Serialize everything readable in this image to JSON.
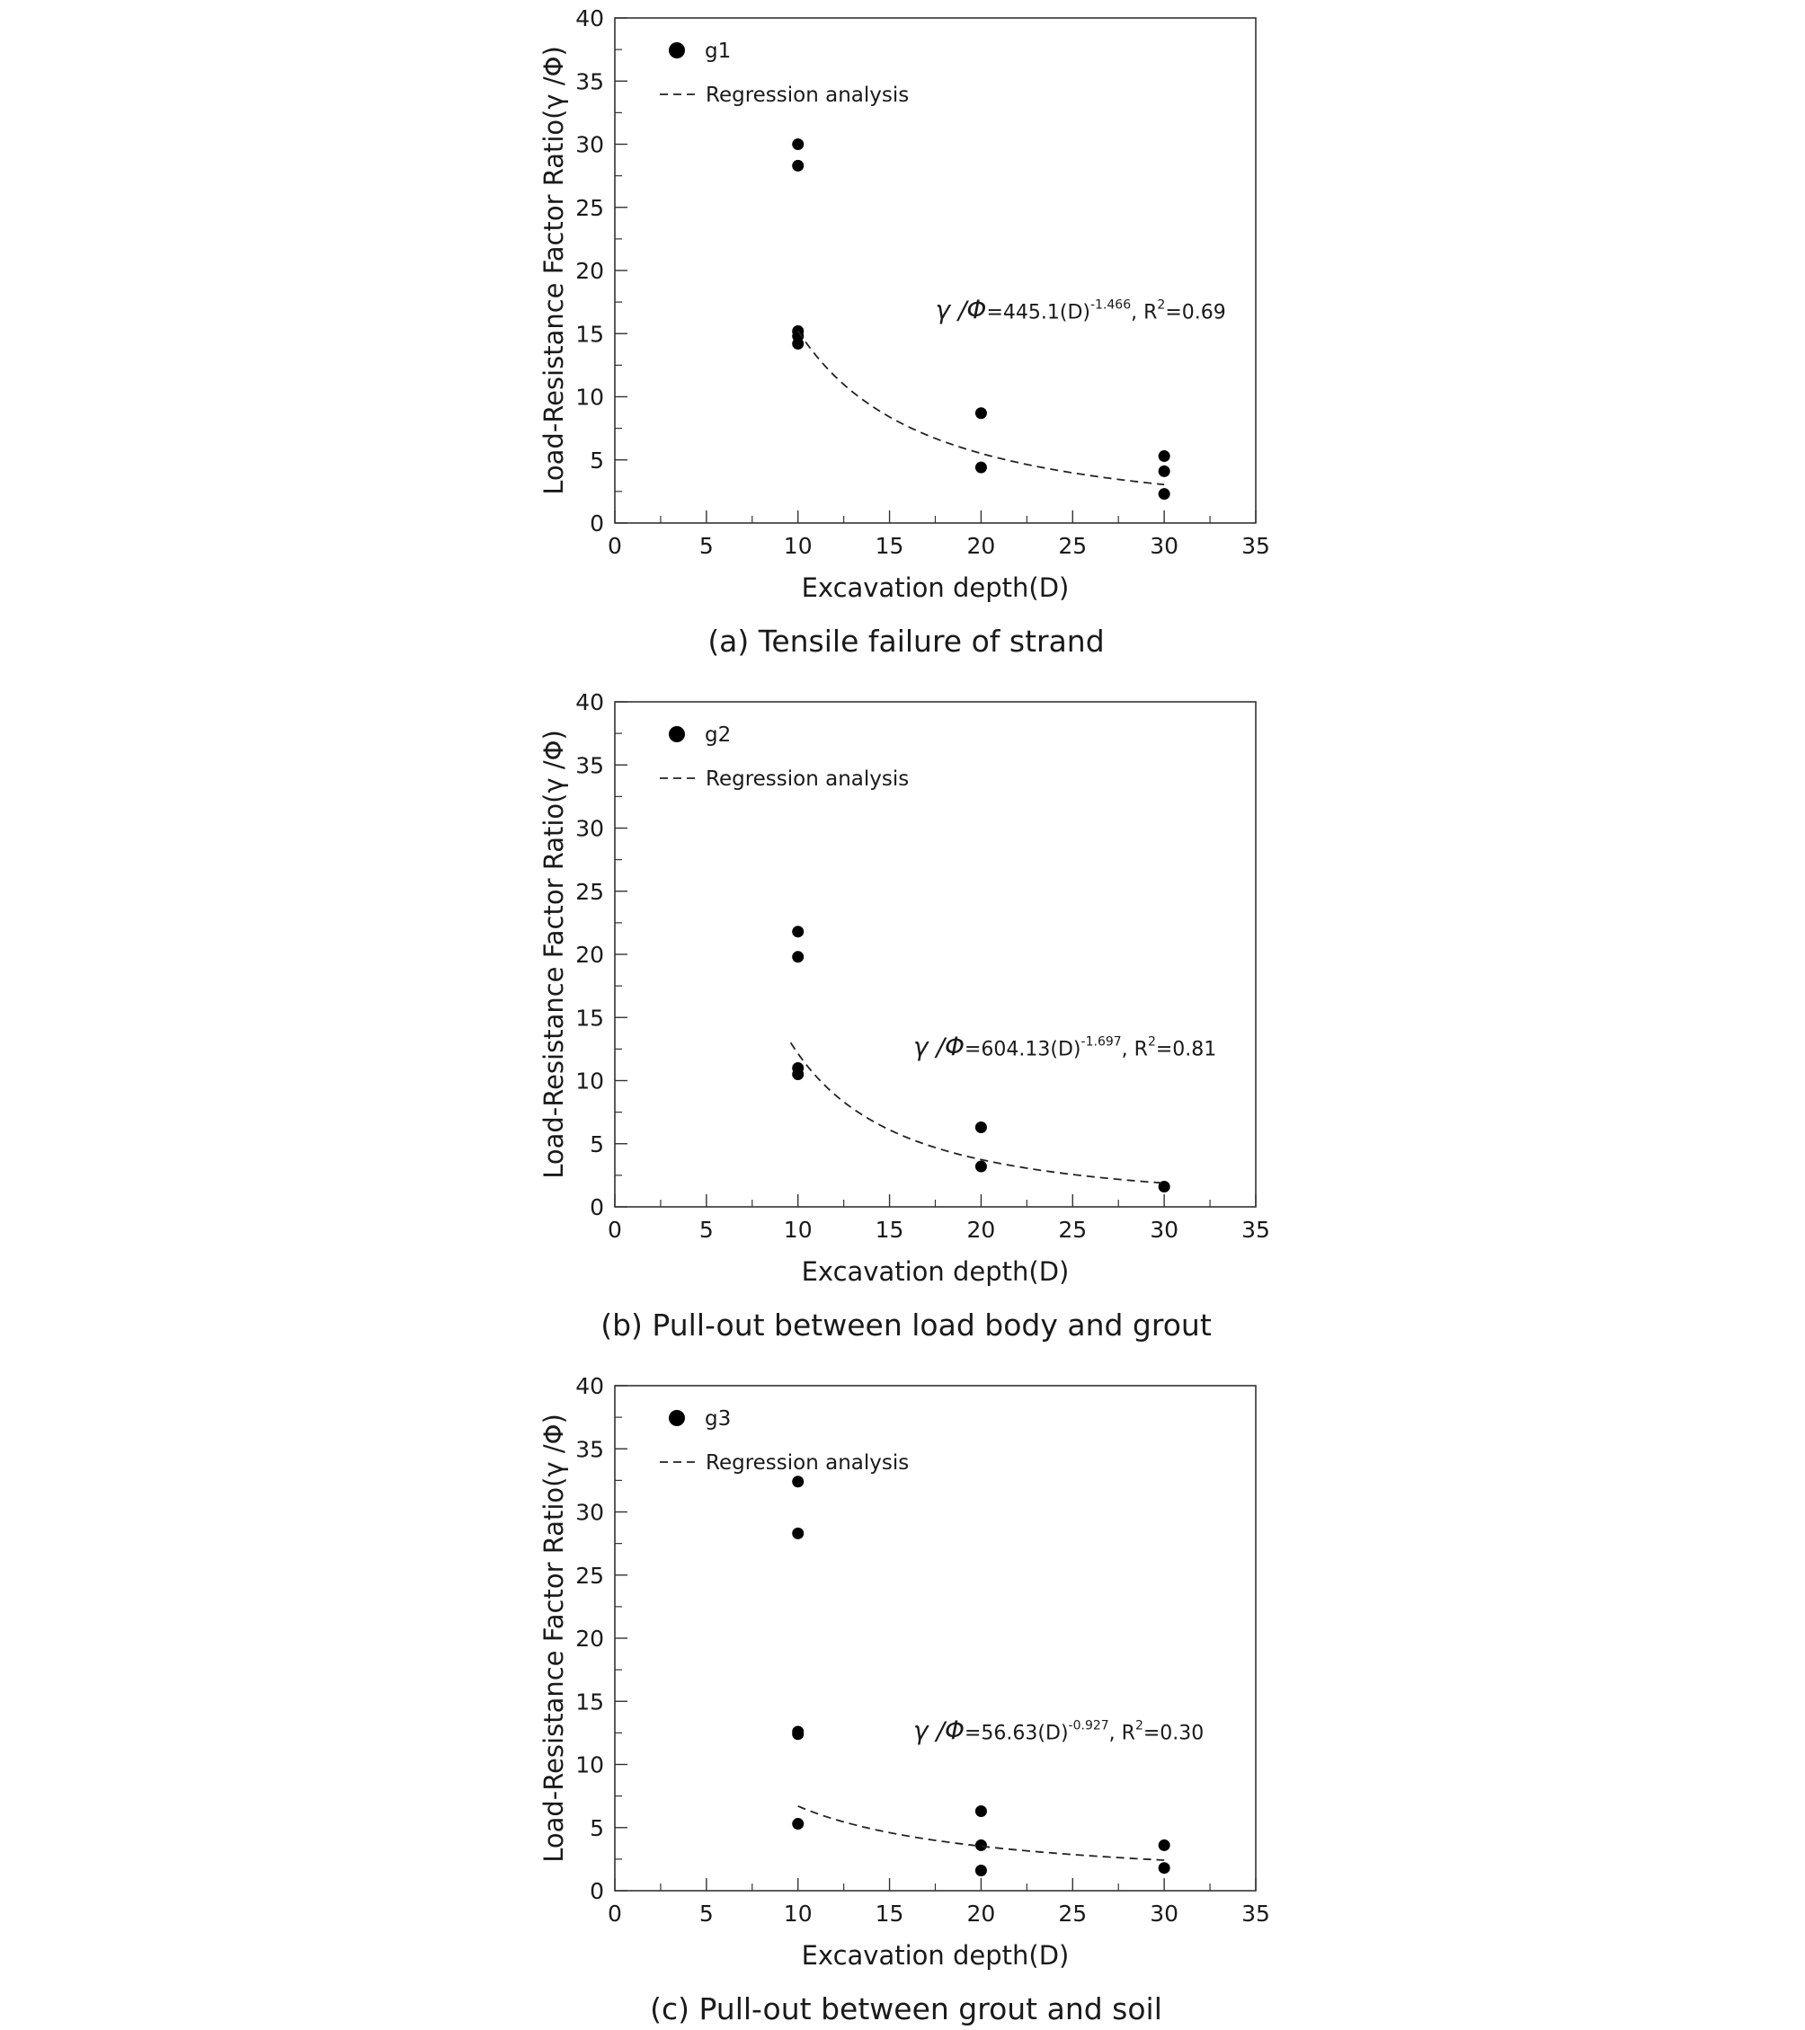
{
  "chart_data": [
    {
      "type": "scatter",
      "caption": "(a) Tensile failure of strand",
      "xlabel": "Excavation depth(D)",
      "ylabel": "Load-Resistance Factor Ratio(γ /Φ)",
      "xlim": [
        0,
        35
      ],
      "ylim": [
        0,
        40
      ],
      "x_ticks": [
        "0",
        "5",
        "10",
        "15",
        "20",
        "25",
        "30",
        "35"
      ],
      "y_ticks": [
        "0",
        "5",
        "10",
        "15",
        "20",
        "25",
        "30",
        "35",
        "40"
      ],
      "grid": false,
      "legend_position": "top-left",
      "series": [
        {
          "name": "g1",
          "kind": "points",
          "points": [
            [
              10,
              30.0
            ],
            [
              10,
              28.3
            ],
            [
              10,
              15.2
            ],
            [
              10,
              14.8
            ],
            [
              10,
              14.2
            ],
            [
              20,
              8.7
            ],
            [
              20,
              4.4
            ],
            [
              30,
              5.3
            ],
            [
              30,
              4.1
            ],
            [
              30,
              2.3
            ]
          ]
        },
        {
          "name": "Regression analysis",
          "kind": "fit",
          "curve": {
            "a": 445.1,
            "b": -1.466,
            "x_from": 10,
            "x_to": 30
          }
        }
      ],
      "equation": {
        "lhs": "γ /Φ",
        "main": "=445.1(D)",
        "exp": "-1.466",
        "r_text": ", R",
        "r_exp": "2",
        "r_value": "=0.69",
        "x": 17.5,
        "y": 16.2
      }
    },
    {
      "type": "scatter",
      "caption": "(b) Pull-out between load body and grout",
      "xlabel": "Excavation depth(D)",
      "ylabel": "Load-Resistance Factor Ratio(γ /Φ)",
      "xlim": [
        0,
        35
      ],
      "ylim": [
        0,
        40
      ],
      "x_ticks": [
        "0",
        "5",
        "10",
        "15",
        "20",
        "25",
        "30",
        "35"
      ],
      "y_ticks": [
        "0",
        "5",
        "10",
        "15",
        "20",
        "25",
        "30",
        "35",
        "40"
      ],
      "grid": false,
      "legend_position": "top-left",
      "series": [
        {
          "name": "g2",
          "kind": "points",
          "points": [
            [
              10,
              21.8
            ],
            [
              10,
              19.8
            ],
            [
              10,
              11.0
            ],
            [
              10,
              10.5
            ],
            [
              20,
              6.3
            ],
            [
              20,
              3.2
            ],
            [
              30,
              1.6
            ]
          ]
        },
        {
          "name": "Regression analysis",
          "kind": "fit",
          "curve": {
            "a": 604.13,
            "b": -1.697,
            "x_from": 9.6,
            "x_to": 30
          }
        }
      ],
      "equation": {
        "lhs": "γ /Φ",
        "main": "=604.13(D)",
        "exp": "-1.697",
        "r_text": ", R",
        "r_exp": "2",
        "r_value": "=0.81",
        "x": 16.3,
        "y": 12.0
      }
    },
    {
      "type": "scatter",
      "caption": "(c) Pull-out between grout and soil",
      "xlabel": "Excavation depth(D)",
      "ylabel": "Load-Resistance Factor Ratio(γ /Φ)",
      "xlim": [
        0,
        35
      ],
      "ylim": [
        0,
        40
      ],
      "x_ticks": [
        "0",
        "5",
        "10",
        "15",
        "20",
        "25",
        "30",
        "35"
      ],
      "y_ticks": [
        "0",
        "5",
        "10",
        "15",
        "20",
        "25",
        "30",
        "35",
        "40"
      ],
      "grid": false,
      "legend_position": "top-left",
      "series": [
        {
          "name": "g3",
          "kind": "points",
          "points": [
            [
              10,
              32.4
            ],
            [
              10,
              28.3
            ],
            [
              10,
              12.6
            ],
            [
              10,
              12.4
            ],
            [
              10,
              5.3
            ],
            [
              20,
              6.3
            ],
            [
              20,
              3.6
            ],
            [
              20,
              1.6
            ],
            [
              30,
              3.6
            ],
            [
              30,
              1.8
            ]
          ]
        },
        {
          "name": "Regression analysis",
          "kind": "fit",
          "curve": {
            "a": 56.63,
            "b": -0.927,
            "x_from": 10,
            "x_to": 30
          }
        }
      ],
      "equation": {
        "lhs": "γ /Φ",
        "main": "=56.63(D)",
        "exp": "-0.927",
        "r_text": ", R",
        "r_exp": "2",
        "r_value": "=0.30",
        "x": 16.3,
        "y": 12.0
      }
    }
  ]
}
